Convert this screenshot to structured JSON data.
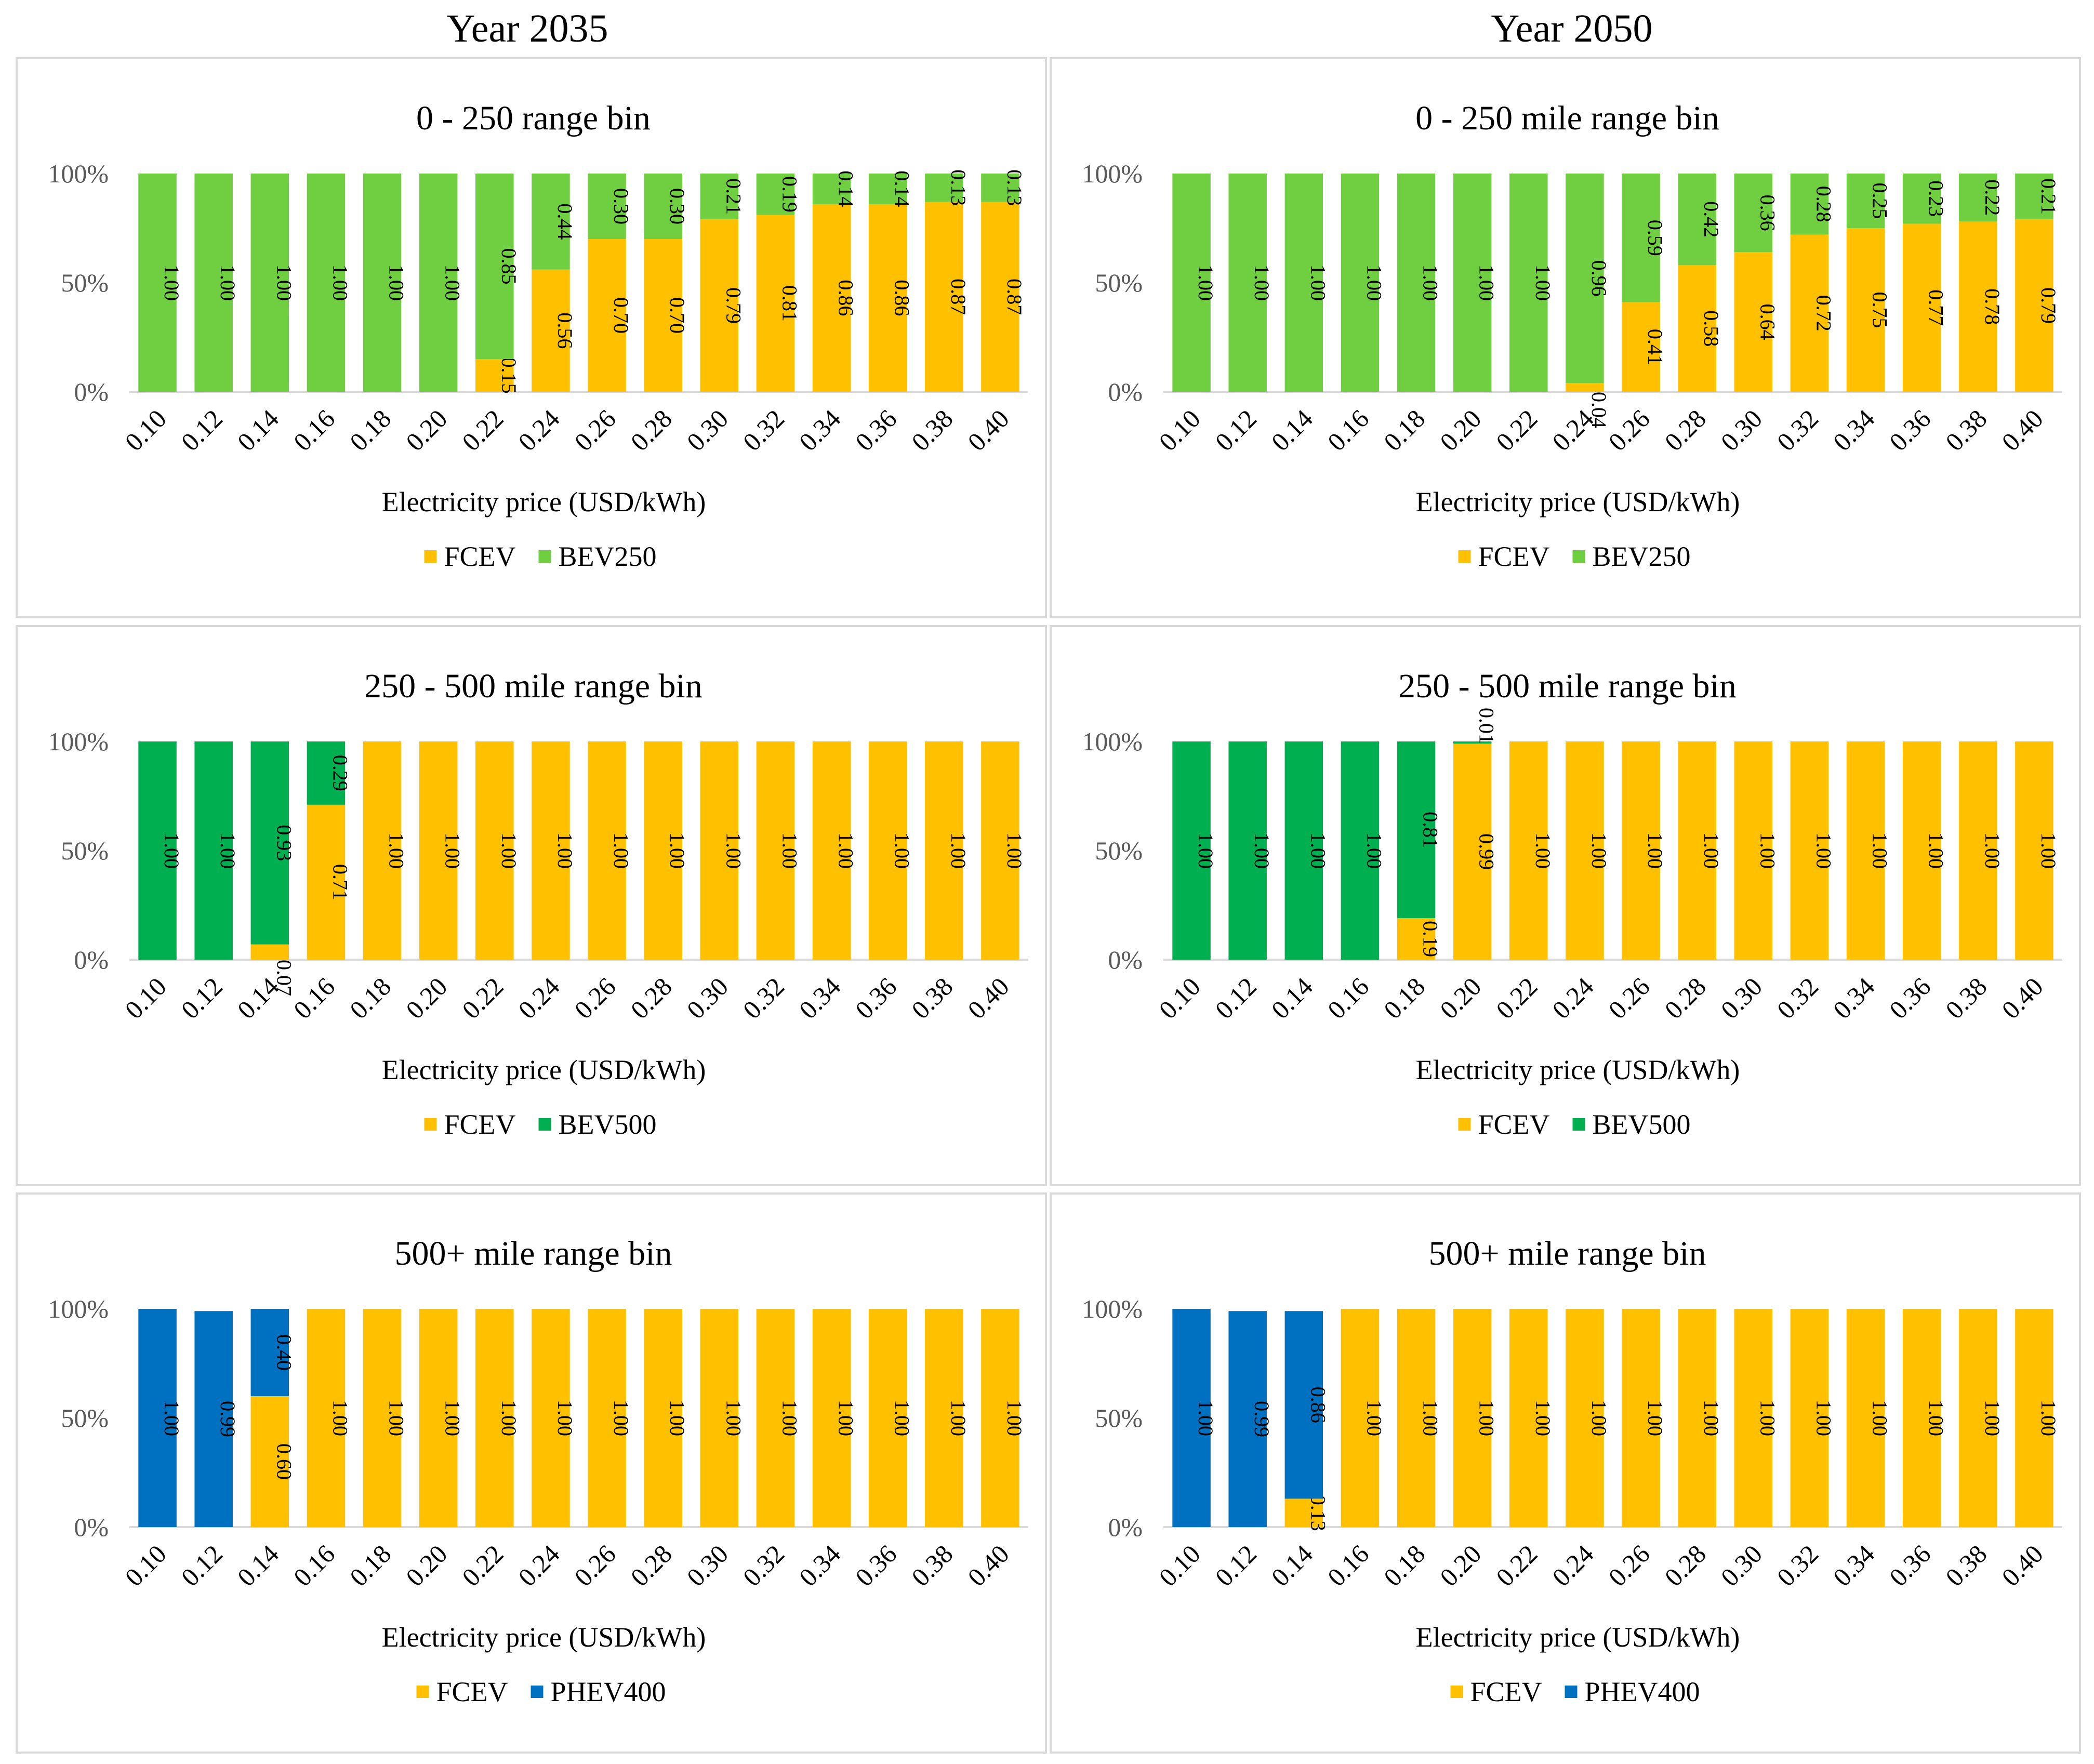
{
  "columns": [
    "Year 2035",
    "Year 2050"
  ],
  "colors": {
    "FCEV": "#FFC000",
    "BEV250": "#70CF40",
    "BEV500": "#00B050",
    "PHEV400": "#0070C0"
  },
  "chart_data": [
    {
      "type": "bar",
      "stacked": true,
      "year": "Year 2035",
      "title": "0 - 250 range bin",
      "xlabel": "Electricity price (USD/kWh)",
      "ylabel": "",
      "yticks": [
        "0%",
        "50%",
        "100%"
      ],
      "ylim": [
        0,
        1
      ],
      "categories": [
        "0.10",
        "0.12",
        "0.14",
        "0.16",
        "0.18",
        "0.20",
        "0.22",
        "0.24",
        "0.26",
        "0.28",
        "0.30",
        "0.32",
        "0.34",
        "0.36",
        "0.38",
        "0.40"
      ],
      "series": [
        {
          "name": "FCEV",
          "color": "#FFC000",
          "values": [
            0,
            0,
            0,
            0,
            0,
            0,
            0.15,
            0.56,
            0.7,
            0.7,
            0.79,
            0.81,
            0.86,
            0.86,
            0.87,
            0.87
          ],
          "labels": [
            "",
            "",
            "",
            "",
            "",
            "",
            "0.15",
            "0.56",
            "0.70",
            "0.70",
            "0.79",
            "0.81",
            "0.86",
            "0.86",
            "0.87",
            "0.87"
          ]
        },
        {
          "name": "BEV250",
          "color": "#70CF40",
          "values": [
            1,
            1,
            1,
            1,
            1,
            1,
            0.85,
            0.44,
            0.3,
            0.3,
            0.21,
            0.19,
            0.14,
            0.14,
            0.13,
            0.13
          ],
          "labels": [
            "1.00",
            "1.00",
            "1.00",
            "1.00",
            "1.00",
            "1.00",
            "0.85",
            "0.44",
            "0.30",
            "0.30",
            "0.21",
            "0.19",
            "0.14",
            "0.14",
            "0.13",
            "0.13"
          ]
        }
      ],
      "legend": [
        "FCEV",
        "BEV250"
      ]
    },
    {
      "type": "bar",
      "stacked": true,
      "year": "Year 2050",
      "title": "0 - 250 mile range bin",
      "xlabel": "Electricity price (USD/kWh)",
      "ylabel": "",
      "yticks": [
        "0%",
        "50%",
        "100%"
      ],
      "ylim": [
        0,
        1
      ],
      "categories": [
        "0.10",
        "0.12",
        "0.14",
        "0.16",
        "0.18",
        "0.20",
        "0.22",
        "0.24",
        "0.26",
        "0.28",
        "0.30",
        "0.32",
        "0.34",
        "0.36",
        "0.38",
        "0.40"
      ],
      "series": [
        {
          "name": "FCEV",
          "color": "#FFC000",
          "values": [
            0,
            0,
            0,
            0,
            0,
            0,
            0,
            0.04,
            0.41,
            0.58,
            0.64,
            0.72,
            0.75,
            0.77,
            0.78,
            0.79
          ],
          "labels": [
            "",
            "",
            "",
            "",
            "",
            "",
            "",
            "0.04",
            "0.41",
            "0.58",
            "0.64",
            "0.72",
            "0.75",
            "0.77",
            "0.78",
            "0.79"
          ]
        },
        {
          "name": "BEV250",
          "color": "#70CF40",
          "values": [
            1,
            1,
            1,
            1,
            1,
            1,
            1,
            0.96,
            0.59,
            0.42,
            0.36,
            0.28,
            0.25,
            0.23,
            0.22,
            0.21
          ],
          "labels": [
            "1.00",
            "1.00",
            "1.00",
            "1.00",
            "1.00",
            "1.00",
            "1.00",
            "0.96",
            "0.59",
            "0.42",
            "0.36",
            "0.28",
            "0.25",
            "0.23",
            "0.22",
            "0.21"
          ]
        }
      ],
      "legend": [
        "FCEV",
        "BEV250"
      ]
    },
    {
      "type": "bar",
      "stacked": true,
      "year": "Year 2035",
      "title": "250 - 500 mile range bin",
      "xlabel": "Electricity price (USD/kWh)",
      "ylabel": "",
      "yticks": [
        "0%",
        "50%",
        "100%"
      ],
      "ylim": [
        0,
        1
      ],
      "categories": [
        "0.10",
        "0.12",
        "0.14",
        "0.16",
        "0.18",
        "0.20",
        "0.22",
        "0.24",
        "0.26",
        "0.28",
        "0.30",
        "0.32",
        "0.34",
        "0.36",
        "0.38",
        "0.40"
      ],
      "series": [
        {
          "name": "FCEV",
          "color": "#FFC000",
          "values": [
            0,
            0,
            0.07,
            0.71,
            1,
            1,
            1,
            1,
            1,
            1,
            1,
            1,
            1,
            1,
            1,
            1
          ],
          "labels": [
            "",
            "",
            "0.07",
            "0.71",
            "1.00",
            "1.00",
            "1.00",
            "1.00",
            "1.00",
            "1.00",
            "1.00",
            "1.00",
            "1.00",
            "1.00",
            "1.00",
            "1.00"
          ]
        },
        {
          "name": "BEV500",
          "color": "#00B050",
          "values": [
            1,
            1,
            0.93,
            0.29,
            0,
            0,
            0,
            0,
            0,
            0,
            0,
            0,
            0,
            0,
            0,
            0
          ],
          "labels": [
            "1.00",
            "1.00",
            "0.93",
            "0.29",
            "",
            "",
            "",
            "",
            "",
            "",
            "",
            "",
            "",
            "",
            "",
            ""
          ]
        }
      ],
      "legend": [
        "FCEV",
        "BEV500"
      ]
    },
    {
      "type": "bar",
      "stacked": true,
      "year": "Year 2050",
      "title": "250 - 500 mile range bin",
      "xlabel": "Electricity price (USD/kWh)",
      "ylabel": "",
      "yticks": [
        "0%",
        "50%",
        "100%"
      ],
      "ylim": [
        0,
        1
      ],
      "categories": [
        "0.10",
        "0.12",
        "0.14",
        "0.16",
        "0.18",
        "0.20",
        "0.22",
        "0.24",
        "0.26",
        "0.28",
        "0.30",
        "0.32",
        "0.34",
        "0.36",
        "0.38",
        "0.40"
      ],
      "series": [
        {
          "name": "FCEV",
          "color": "#FFC000",
          "values": [
            0,
            0,
            0,
            0,
            0.19,
            0.99,
            1,
            1,
            1,
            1,
            1,
            1,
            1,
            1,
            1,
            1
          ],
          "labels": [
            "",
            "",
            "",
            "",
            "0.19",
            "0.99",
            "1.00",
            "1.00",
            "1.00",
            "1.00",
            "1.00",
            "1.00",
            "1.00",
            "1.00",
            "1.00",
            "1.00"
          ]
        },
        {
          "name": "BEV500",
          "color": "#00B050",
          "values": [
            1,
            1,
            1,
            1,
            0.81,
            0.01,
            0,
            0,
            0,
            0,
            0,
            0,
            0,
            0,
            0,
            0
          ],
          "labels": [
            "1.00",
            "1.00",
            "1.00",
            "1.00",
            "0.81",
            "0.01",
            "",
            "",
            "",
            "",
            "",
            "",
            "",
            "",
            "",
            ""
          ]
        }
      ],
      "legend": [
        "FCEV",
        "BEV500"
      ]
    },
    {
      "type": "bar",
      "stacked": true,
      "year": "Year 2035",
      "title": "500+ mile range bin",
      "xlabel": "Electricity price (USD/kWh)",
      "ylabel": "",
      "yticks": [
        "0%",
        "50%",
        "100%"
      ],
      "ylim": [
        0,
        1
      ],
      "categories": [
        "0.10",
        "0.12",
        "0.14",
        "0.16",
        "0.18",
        "0.20",
        "0.22",
        "0.24",
        "0.26",
        "0.28",
        "0.30",
        "0.32",
        "0.34",
        "0.36",
        "0.38",
        "0.40"
      ],
      "series": [
        {
          "name": "FCEV",
          "color": "#FFC000",
          "values": [
            0,
            0,
            0.6,
            1,
            1,
            1,
            1,
            1,
            1,
            1,
            1,
            1,
            1,
            1,
            1,
            1
          ],
          "labels": [
            "",
            "",
            "0.60",
            "1.00",
            "1.00",
            "1.00",
            "1.00",
            "1.00",
            "1.00",
            "1.00",
            "1.00",
            "1.00",
            "1.00",
            "1.00",
            "1.00",
            "1.00"
          ]
        },
        {
          "name": "PHEV400",
          "color": "#0070C0",
          "values": [
            1,
            0.99,
            0.4,
            0,
            0,
            0,
            0,
            0,
            0,
            0,
            0,
            0,
            0,
            0,
            0,
            0
          ],
          "labels": [
            "1.00",
            "0.99",
            "0.40",
            "",
            "",
            "",
            "",
            "",
            "",
            "",
            "",
            "",
            "",
            "",
            "",
            ""
          ]
        }
      ],
      "legend": [
        "FCEV",
        "PHEV400"
      ]
    },
    {
      "type": "bar",
      "stacked": true,
      "year": "Year 2050",
      "title": "500+ mile range bin",
      "xlabel": "Electricity price (USD/kWh)",
      "ylabel": "",
      "yticks": [
        "0%",
        "50%",
        "100%"
      ],
      "ylim": [
        0,
        1
      ],
      "categories": [
        "0.10",
        "0.12",
        "0.14",
        "0.16",
        "0.18",
        "0.20",
        "0.22",
        "0.24",
        "0.26",
        "0.28",
        "0.30",
        "0.32",
        "0.34",
        "0.36",
        "0.38",
        "0.40"
      ],
      "series": [
        {
          "name": "FCEV",
          "color": "#FFC000",
          "values": [
            0,
            0,
            0.13,
            1,
            1,
            1,
            1,
            1,
            1,
            1,
            1,
            1,
            1,
            1,
            1,
            1
          ],
          "labels": [
            "",
            "",
            "0.13",
            "1.00",
            "1.00",
            "1.00",
            "1.00",
            "1.00",
            "1.00",
            "1.00",
            "1.00",
            "1.00",
            "1.00",
            "1.00",
            "1.00",
            "1.00"
          ]
        },
        {
          "name": "PHEV400",
          "color": "#0070C0",
          "values": [
            1,
            0.99,
            0.86,
            0,
            0,
            0,
            0,
            0,
            0,
            0,
            0,
            0,
            0,
            0,
            0,
            0
          ],
          "labels": [
            "1.00",
            "0.99",
            "0.86",
            "",
            "",
            "",
            "",
            "",
            "",
            "",
            "",
            "",
            "",
            "",
            "",
            ""
          ]
        }
      ],
      "legend": [
        "FCEV",
        "PHEV400"
      ]
    }
  ]
}
